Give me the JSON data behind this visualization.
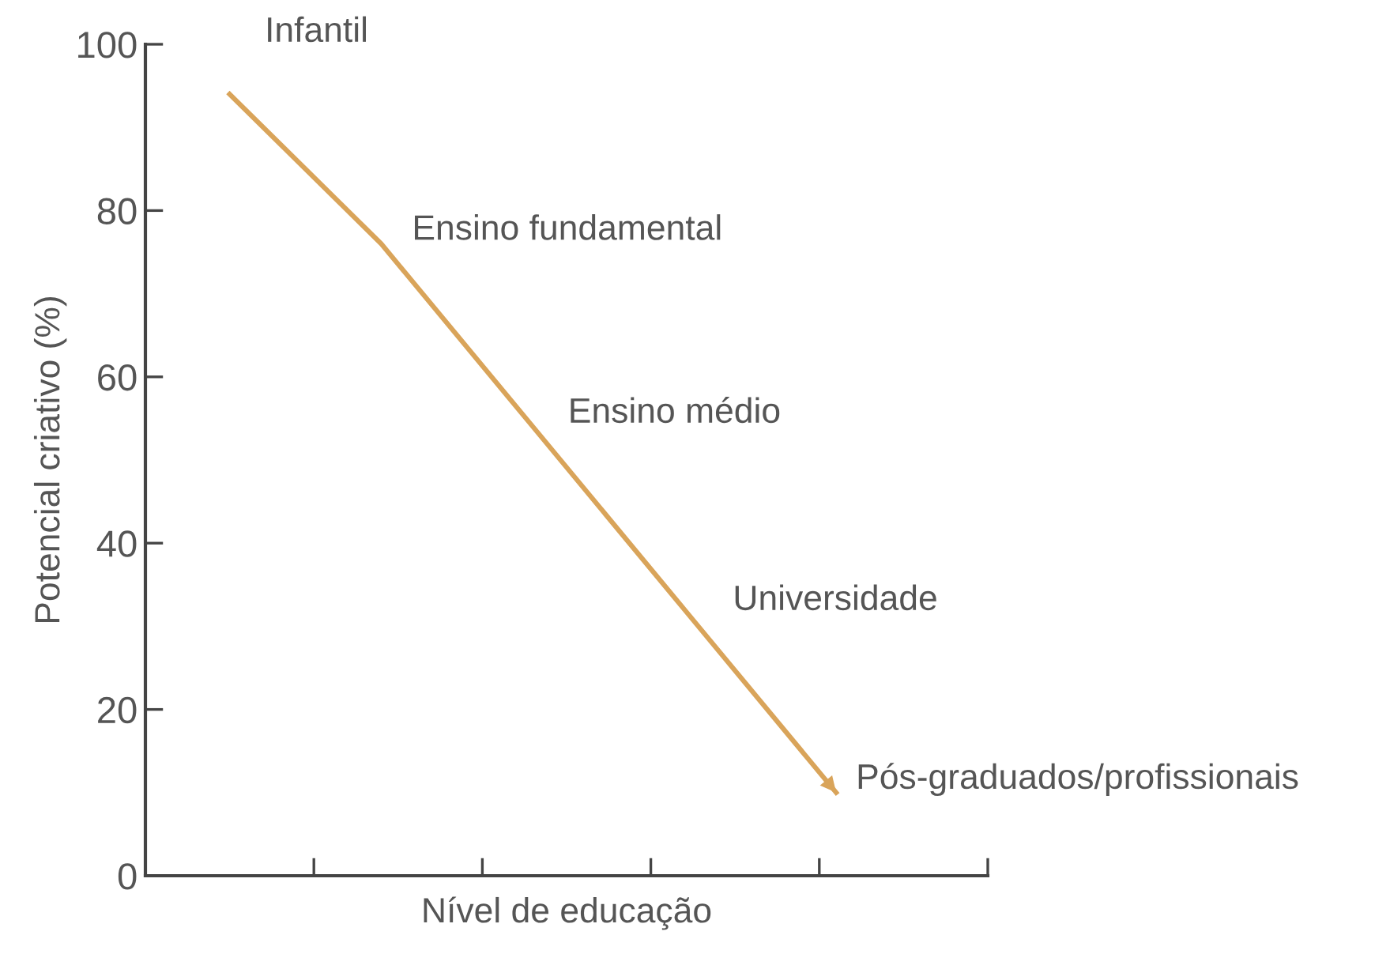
{
  "chart_data": {
    "type": "line",
    "xlabel": "Nível de educação",
    "ylabel": "Potencial criativo (%)",
    "categories": [
      null,
      null,
      null,
      null,
      null
    ],
    "series": [
      {
        "color": "#d9a45a",
        "values": [
          94,
          76,
          54,
          32,
          10
        ]
      }
    ],
    "ylim": [
      0,
      100
    ],
    "yticks": [
      0,
      20,
      40,
      60,
      80,
      100
    ],
    "tick_labels": "y",
    "grid": false,
    "legend": false,
    "marker": "none",
    "line_style": "solid",
    "annotations": [
      "Infantil",
      "Ensino fundamental",
      "Ensino médio",
      "Universidade",
      "Pós-graduados/profissionais"
    ]
  }
}
